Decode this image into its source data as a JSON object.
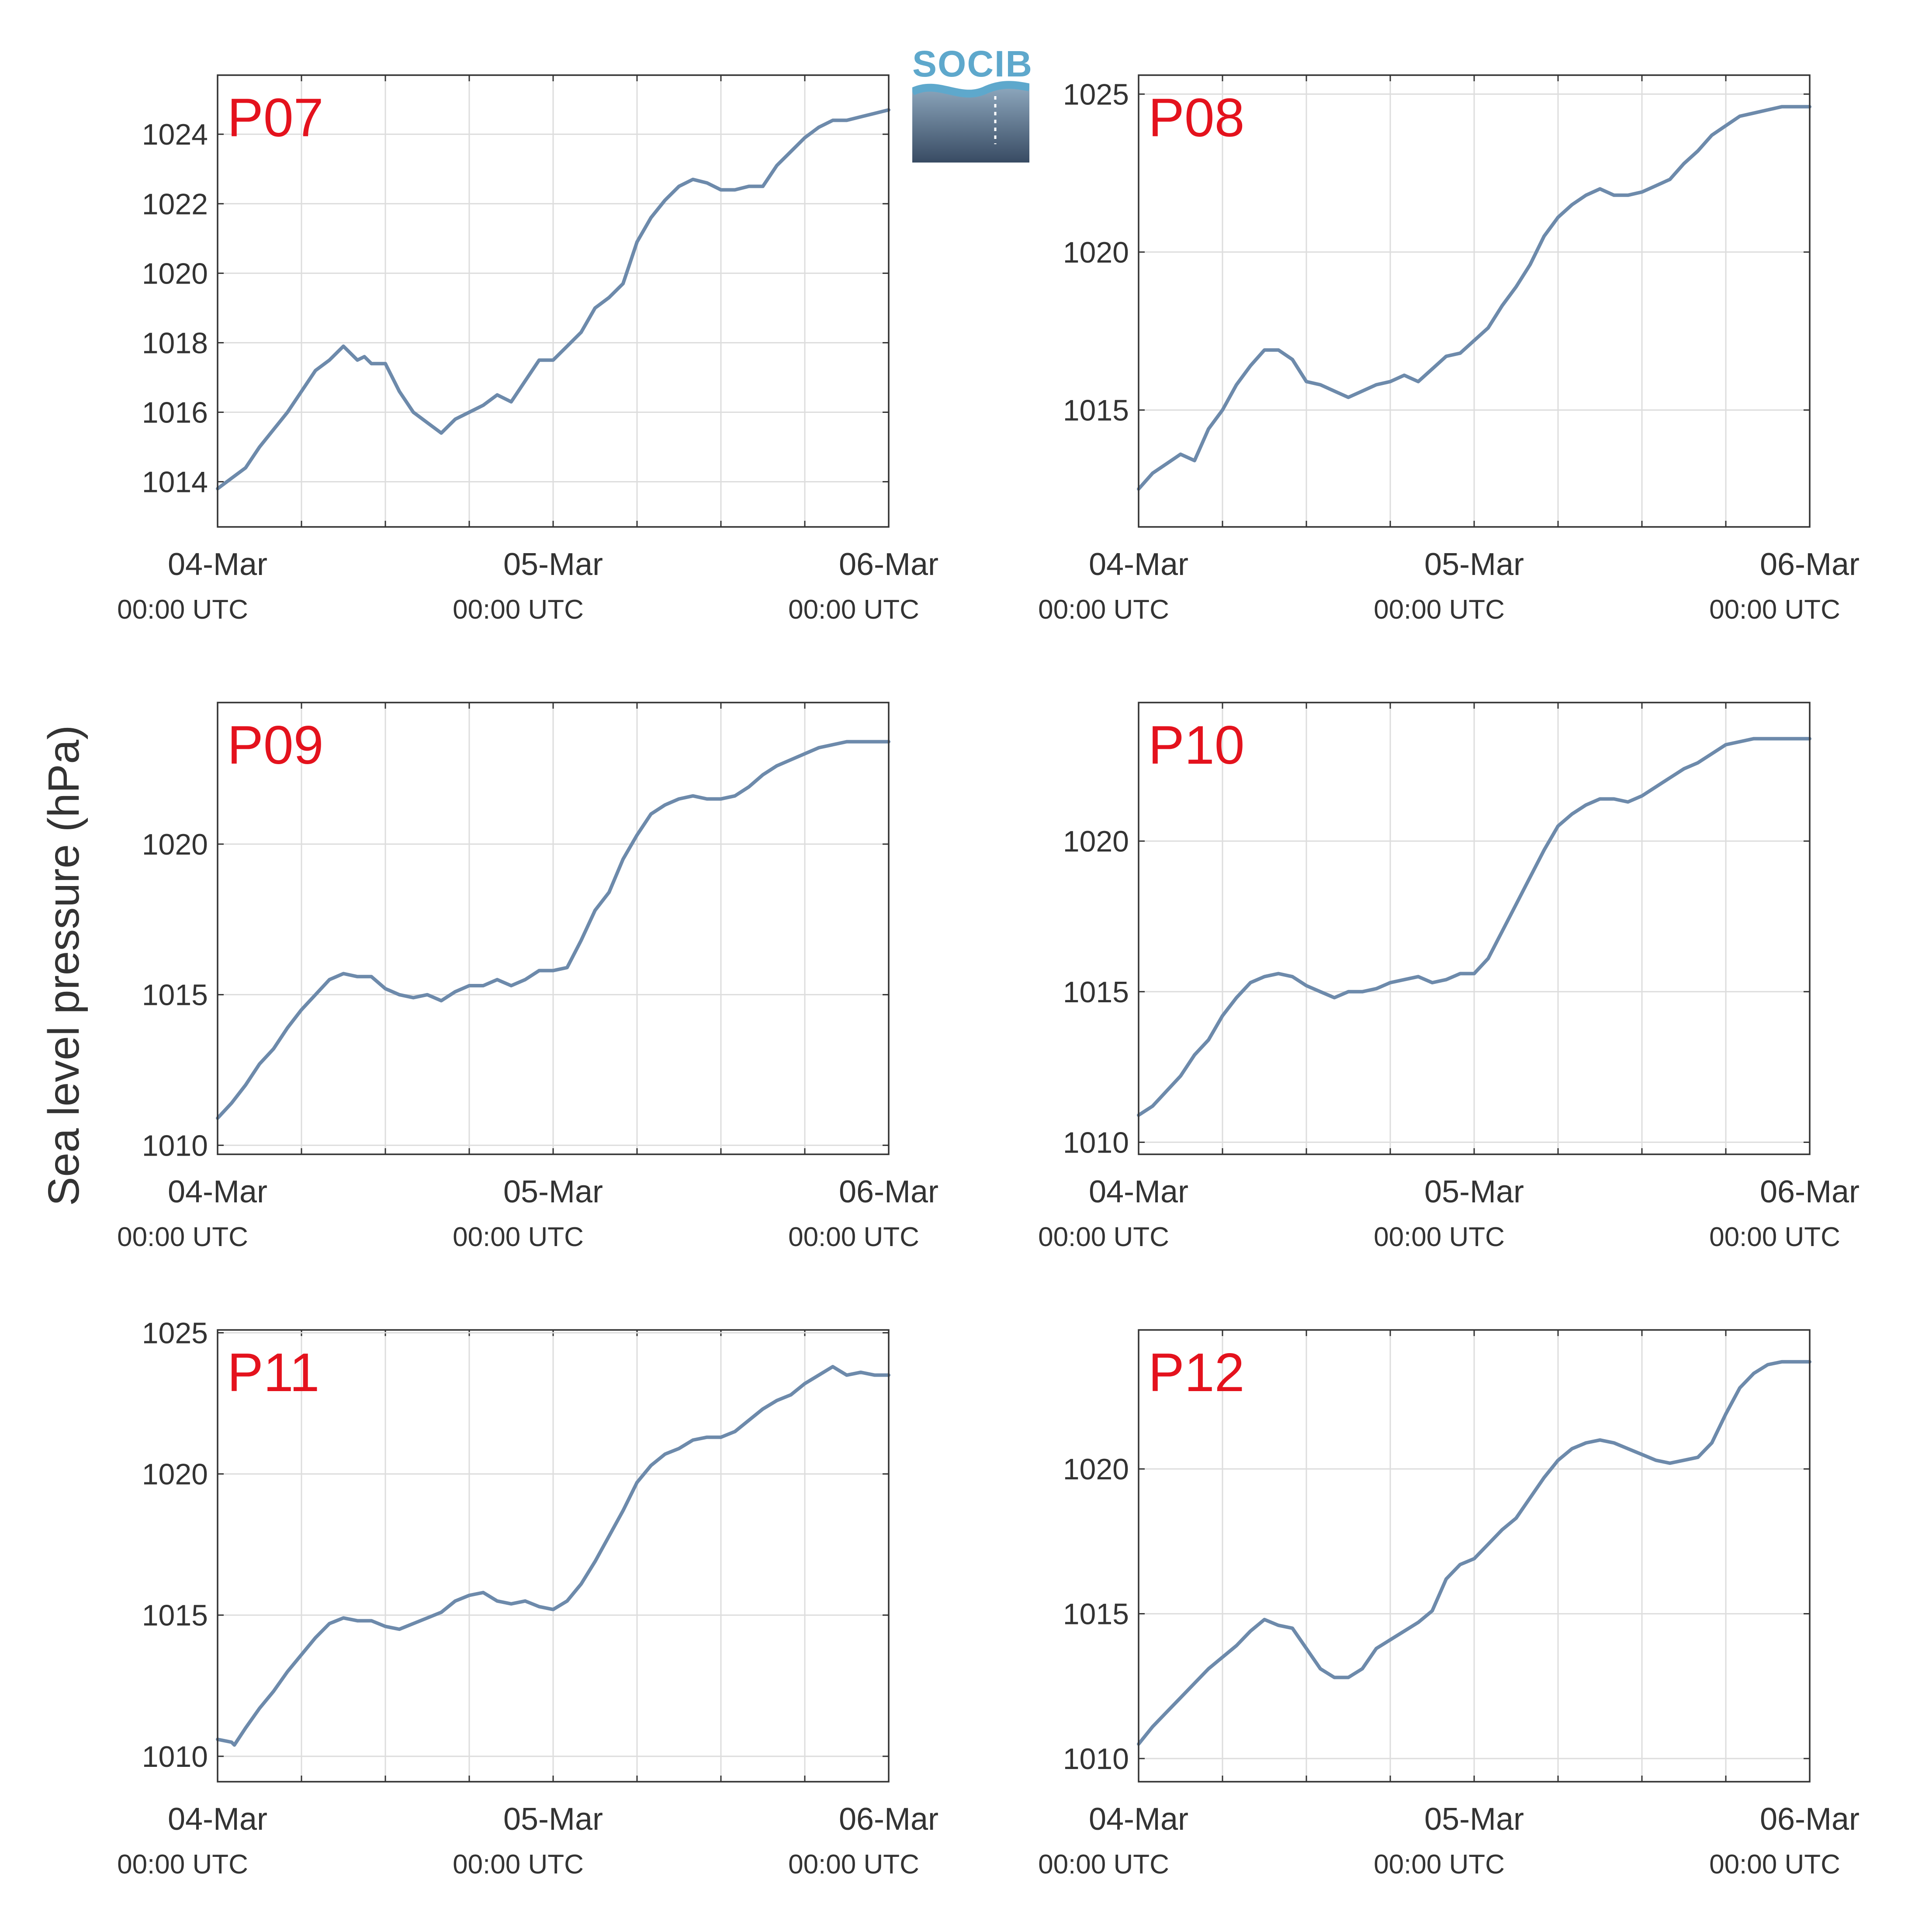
{
  "figure": {
    "ylabel": "Sea level pressure (hPa)",
    "logo_text": "SOCIB"
  },
  "colors": {
    "line": "#6d8aab",
    "title": "#e4121d",
    "grid": "#dddddd",
    "axis": "#333333",
    "logo_top": "#5ea8cc",
    "logo_bottom": "#384b63"
  },
  "chart_data": [
    {
      "type": "line",
      "title": "P07",
      "x_tick_labels": [
        [
          "04-Mar",
          "00:00 UTC"
        ],
        [
          "05-Mar",
          "00:00 UTC"
        ],
        [
          "06-Mar",
          "00:00 UTC"
        ]
      ],
      "xlim_hours": [
        0,
        48
      ],
      "ylim": [
        1012.7,
        1025.7
      ],
      "yticks": [
        1014,
        1016,
        1018,
        1020,
        1022,
        1024
      ],
      "grid": true,
      "series": [
        {
          "x_hours": [
            0,
            1,
            2,
            3,
            4,
            5,
            6,
            7,
            8,
            9,
            10,
            10.5,
            11,
            12,
            13,
            14,
            15,
            16,
            17,
            17.5,
            18,
            19,
            20,
            21,
            22,
            23,
            24,
            25,
            26,
            27,
            28,
            29,
            30,
            31,
            32,
            33,
            34,
            35,
            36,
            37,
            38,
            39,
            40,
            41,
            42,
            43,
            44,
            45,
            46,
            47,
            48
          ],
          "values": [
            1013.8,
            1014.1,
            1014.4,
            1015.0,
            1015.5,
            1016.0,
            1016.6,
            1017.2,
            1017.5,
            1017.9,
            1017.5,
            1017.6,
            1017.4,
            1017.4,
            1016.6,
            1016.0,
            1015.7,
            1015.4,
            1015.8,
            1015.9,
            1016.0,
            1016.2,
            1016.5,
            1016.3,
            1016.9,
            1017.5,
            1017.5,
            1017.9,
            1018.3,
            1019.0,
            1019.3,
            1019.7,
            1020.9,
            1021.6,
            1022.1,
            1022.5,
            1022.7,
            1022.6,
            1022.4,
            1022.4,
            1022.5,
            1022.5,
            1023.1,
            1023.5,
            1023.9,
            1024.2,
            1024.4,
            1024.4,
            1024.5,
            1024.6,
            1024.7
          ]
        }
      ]
    },
    {
      "type": "line",
      "title": "P08",
      "x_tick_labels": [
        [
          "04-Mar",
          "00:00 UTC"
        ],
        [
          "05-Mar",
          "00:00 UTC"
        ],
        [
          "06-Mar",
          "00:00 UTC"
        ]
      ],
      "xlim_hours": [
        0,
        48
      ],
      "ylim": [
        1011.3,
        1025.6
      ],
      "yticks": [
        1015,
        1020,
        1025
      ],
      "grid": true,
      "series": [
        {
          "x_hours": [
            0,
            1,
            2,
            3,
            4,
            5,
            6,
            7,
            8,
            9,
            10,
            11,
            12,
            13,
            14,
            15,
            16,
            17,
            18,
            19,
            20,
            21,
            22,
            23,
            24,
            25,
            26,
            27,
            28,
            29,
            30,
            31,
            32,
            33,
            34,
            35,
            36,
            37,
            38,
            39,
            40,
            41,
            42,
            43,
            44,
            45,
            46,
            47,
            48
          ],
          "values": [
            1012.5,
            1013.0,
            1013.3,
            1013.6,
            1013.4,
            1014.4,
            1015.0,
            1015.8,
            1016.4,
            1016.9,
            1016.9,
            1016.6,
            1015.9,
            1015.8,
            1015.6,
            1015.4,
            1015.6,
            1015.8,
            1015.9,
            1016.1,
            1015.9,
            1016.3,
            1016.7,
            1016.8,
            1017.2,
            1017.6,
            1018.3,
            1018.9,
            1019.6,
            1020.5,
            1021.1,
            1021.5,
            1021.8,
            1022.0,
            1021.8,
            1021.8,
            1021.9,
            1022.1,
            1022.3,
            1022.8,
            1023.2,
            1023.7,
            1024.0,
            1024.3,
            1024.4,
            1024.5,
            1024.6,
            1024.6,
            1024.6
          ]
        }
      ]
    },
    {
      "type": "line",
      "title": "P09",
      "x_tick_labels": [
        [
          "04-Mar",
          "00:00 UTC"
        ],
        [
          "05-Mar",
          "00:00 UTC"
        ],
        [
          "06-Mar",
          "00:00 UTC"
        ]
      ],
      "xlim_hours": [
        0,
        48
      ],
      "ylim": [
        1009.7,
        1024.7
      ],
      "yticks": [
        1010,
        1015,
        1020
      ],
      "grid": true,
      "series": [
        {
          "x_hours": [
            0,
            1,
            2,
            3,
            4,
            5,
            6,
            7,
            8,
            9,
            10,
            11,
            12,
            13,
            14,
            15,
            16,
            17,
            18,
            19,
            20,
            21,
            22,
            23,
            24,
            25,
            26,
            27,
            28,
            29,
            30,
            31,
            32,
            33,
            34,
            35,
            36,
            37,
            38,
            39,
            40,
            41,
            42,
            43,
            44,
            45,
            46,
            47,
            48
          ],
          "values": [
            1010.9,
            1011.4,
            1012.0,
            1012.7,
            1013.2,
            1013.9,
            1014.5,
            1015.0,
            1015.5,
            1015.7,
            1015.6,
            1015.6,
            1015.2,
            1015.0,
            1014.9,
            1015.0,
            1014.8,
            1015.1,
            1015.3,
            1015.3,
            1015.5,
            1015.3,
            1015.5,
            1015.8,
            1015.8,
            1015.9,
            1016.8,
            1017.8,
            1018.4,
            1019.5,
            1020.3,
            1021.0,
            1021.3,
            1021.5,
            1021.6,
            1021.5,
            1021.5,
            1021.6,
            1021.9,
            1022.3,
            1022.6,
            1022.8,
            1023.0,
            1023.2,
            1023.3,
            1023.4,
            1023.4,
            1023.4,
            1023.4
          ]
        }
      ]
    },
    {
      "type": "line",
      "title": "P10",
      "x_tick_labels": [
        [
          "04-Mar",
          "00:00 UTC"
        ],
        [
          "05-Mar",
          "00:00 UTC"
        ],
        [
          "06-Mar",
          "00:00 UTC"
        ]
      ],
      "xlim_hours": [
        0,
        48
      ],
      "ylim": [
        1009.6,
        1024.6
      ],
      "yticks": [
        1010,
        1015,
        1020
      ],
      "grid": true,
      "series": [
        {
          "x_hours": [
            0,
            1,
            2,
            3,
            4,
            5,
            6,
            7,
            8,
            9,
            10,
            11,
            12,
            13,
            14,
            15,
            16,
            17,
            18,
            19,
            20,
            21,
            22,
            23,
            24,
            25,
            26,
            27,
            28,
            29,
            30,
            31,
            32,
            33,
            34,
            35,
            36,
            37,
            38,
            39,
            40,
            41,
            42,
            43,
            44,
            45,
            46,
            47,
            48
          ],
          "values": [
            1010.9,
            1011.2,
            1011.7,
            1012.2,
            1012.9,
            1013.4,
            1014.2,
            1014.8,
            1015.3,
            1015.5,
            1015.6,
            1015.5,
            1015.2,
            1015.0,
            1014.8,
            1015.0,
            1015.0,
            1015.1,
            1015.3,
            1015.4,
            1015.5,
            1015.3,
            1015.4,
            1015.6,
            1015.6,
            1016.1,
            1017.0,
            1017.9,
            1018.8,
            1019.7,
            1020.5,
            1020.9,
            1021.2,
            1021.4,
            1021.4,
            1021.3,
            1021.5,
            1021.8,
            1022.1,
            1022.4,
            1022.6,
            1022.9,
            1023.2,
            1023.3,
            1023.4,
            1023.4,
            1023.4,
            1023.4,
            1023.4
          ]
        }
      ]
    },
    {
      "type": "line",
      "title": "P11",
      "x_tick_labels": [
        [
          "04-Mar",
          "00:00 UTC"
        ],
        [
          "05-Mar",
          "00:00 UTC"
        ],
        [
          "06-Mar",
          "00:00 UTC"
        ]
      ],
      "xlim_hours": [
        0,
        48
      ],
      "ylim": [
        1009.1,
        1025.1
      ],
      "yticks": [
        1010,
        1015,
        1020,
        1025
      ],
      "grid": true,
      "series": [
        {
          "x_hours": [
            0,
            1,
            1.2,
            2,
            3,
            4,
            5,
            6,
            7,
            8,
            9,
            10,
            11,
            12,
            13,
            14,
            15,
            16,
            17,
            18,
            19,
            20,
            21,
            22,
            23,
            24,
            25,
            26,
            27,
            28,
            29,
            30,
            31,
            32,
            33,
            34,
            35,
            36,
            37,
            38,
            39,
            40,
            41,
            42,
            43,
            44,
            45,
            46,
            47,
            48
          ],
          "values": [
            1010.6,
            1010.5,
            1010.4,
            1011.0,
            1011.7,
            1012.3,
            1013.0,
            1013.6,
            1014.2,
            1014.7,
            1014.9,
            1014.8,
            1014.8,
            1014.6,
            1014.5,
            1014.7,
            1014.9,
            1015.1,
            1015.5,
            1015.7,
            1015.8,
            1015.5,
            1015.4,
            1015.5,
            1015.3,
            1015.2,
            1015.5,
            1016.1,
            1016.9,
            1017.8,
            1018.7,
            1019.7,
            1020.3,
            1020.7,
            1020.9,
            1021.2,
            1021.3,
            1021.3,
            1021.5,
            1021.9,
            1022.3,
            1022.6,
            1022.8,
            1023.2,
            1023.5,
            1023.8,
            1023.5,
            1023.6,
            1023.5,
            1023.5
          ]
        }
      ]
    },
    {
      "type": "line",
      "title": "P12",
      "x_tick_labels": [
        [
          "04-Mar",
          "00:00 UTC"
        ],
        [
          "05-Mar",
          "00:00 UTC"
        ],
        [
          "06-Mar",
          "00:00 UTC"
        ]
      ],
      "xlim_hours": [
        0,
        48
      ],
      "ylim": [
        1009.2,
        1024.8
      ],
      "yticks": [
        1010,
        1015,
        1020
      ],
      "grid": true,
      "series": [
        {
          "x_hours": [
            0,
            1,
            2,
            3,
            4,
            5,
            6,
            7,
            8,
            9,
            10,
            11,
            12,
            13,
            14,
            15,
            16,
            17,
            18,
            19,
            20,
            21,
            22,
            23,
            24,
            25,
            26,
            27,
            28,
            29,
            30,
            31,
            32,
            33,
            34,
            35,
            36,
            37,
            38,
            39,
            40,
            41,
            42,
            43,
            44,
            45,
            46,
            47,
            48
          ],
          "values": [
            1010.5,
            1011.1,
            1011.6,
            1012.1,
            1012.6,
            1013.1,
            1013.5,
            1013.9,
            1014.4,
            1014.8,
            1014.6,
            1014.5,
            1013.8,
            1013.1,
            1012.8,
            1012.8,
            1013.1,
            1013.8,
            1014.1,
            1014.4,
            1014.7,
            1015.1,
            1016.2,
            1016.7,
            1016.9,
            1017.4,
            1017.9,
            1018.3,
            1019.0,
            1019.7,
            1020.3,
            1020.7,
            1020.9,
            1021.0,
            1020.9,
            1020.7,
            1020.5,
            1020.3,
            1020.2,
            1020.3,
            1020.4,
            1020.9,
            1021.9,
            1022.8,
            1023.3,
            1023.6,
            1023.7,
            1023.7,
            1023.7
          ]
        }
      ]
    }
  ]
}
